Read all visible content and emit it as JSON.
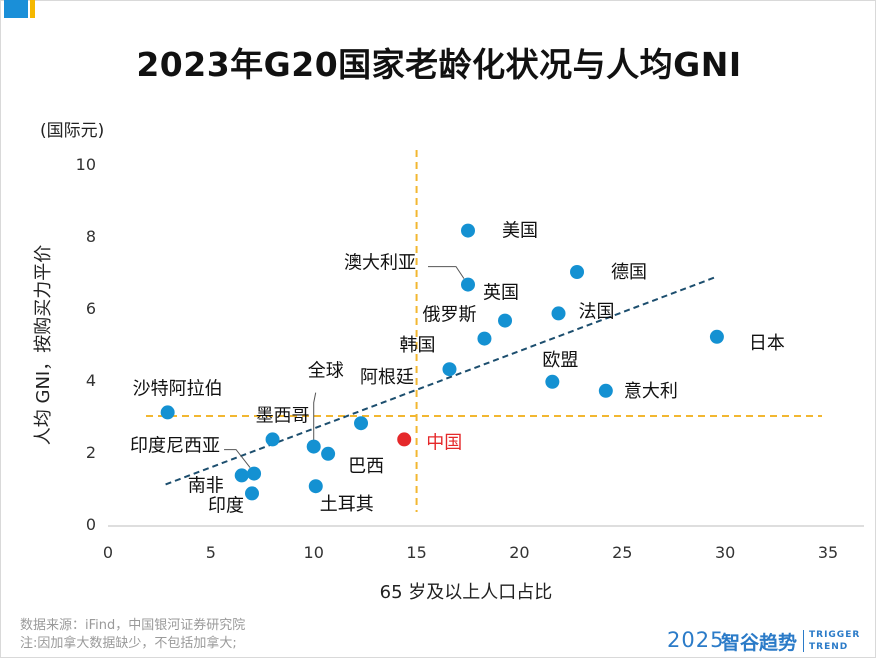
{
  "title": "2023年G20国家老龄化状况与人均GNI",
  "unit_label": "(国际元)",
  "footer": {
    "source": "数据来源：iFind，中国银河证券研究院",
    "note": "注:因加拿大数据缺少，不包括加拿大;",
    "brand_year": "2025",
    "brand_name": "智谷趋势",
    "brand_en_1": "TRIGGER",
    "brand_en_2": "TREND"
  },
  "colors": {
    "point": "#1491d2",
    "highlight": "#e5282a",
    "trend": "#1c4e6e",
    "reference": "#f2b731",
    "corner_blue": "#1a8fd8",
    "corner_yellow": "#f5b800"
  },
  "chart_data": {
    "type": "scatter",
    "xlabel": "65 岁及以上人口占比",
    "ylabel": "人均 GNI，按购买力平价",
    "xlim": [
      0,
      35
    ],
    "ylim": [
      0,
      10
    ],
    "x_ticks": [
      0,
      5,
      10,
      15,
      20,
      25,
      30,
      35
    ],
    "y_ticks": [
      0,
      2,
      4,
      6,
      8,
      10
    ],
    "grid": false,
    "points": [
      {
        "label": "美国",
        "x": 17.5,
        "y": 8.15
      },
      {
        "label": "澳大利亚",
        "x": 17.5,
        "y": 6.65
      },
      {
        "label": "德国",
        "x": 22.8,
        "y": 7.0
      },
      {
        "label": "英国",
        "x": 19.3,
        "y": 5.65
      },
      {
        "label": "法国",
        "x": 21.9,
        "y": 5.85
      },
      {
        "label": "俄罗斯",
        "x": 18.3,
        "y": 5.15
      },
      {
        "label": "日本",
        "x": 29.6,
        "y": 5.2
      },
      {
        "label": "韩国",
        "x": 16.6,
        "y": 4.3
      },
      {
        "label": "欧盟",
        "x": 21.6,
        "y": 3.95
      },
      {
        "label": "意大利",
        "x": 24.2,
        "y": 3.7
      },
      {
        "label": "沙特阿拉伯",
        "x": 2.9,
        "y": 3.1
      },
      {
        "label": "阿根廷",
        "x": 12.3,
        "y": 2.8
      },
      {
        "label": "全球",
        "x": 10.0,
        "y": 2.15
      },
      {
        "label": "墨西哥",
        "x": 8.0,
        "y": 2.35
      },
      {
        "label": "中国",
        "x": 14.4,
        "y": 2.35,
        "highlight": true
      },
      {
        "label": "巴西",
        "x": 10.7,
        "y": 1.95
      },
      {
        "label": "印度尼西亚",
        "x": 7.1,
        "y": 1.4
      },
      {
        "label": "南非",
        "x": 6.5,
        "y": 1.35
      },
      {
        "label": "印度",
        "x": 7.0,
        "y": 0.85
      },
      {
        "label": "土耳其",
        "x": 10.1,
        "y": 1.05
      }
    ],
    "trendline": {
      "x": [
        2.8,
        29.5
      ],
      "y": [
        1.1,
        6.85
      ]
    },
    "reference_lines": {
      "x": 15,
      "y": 3.0
    }
  }
}
